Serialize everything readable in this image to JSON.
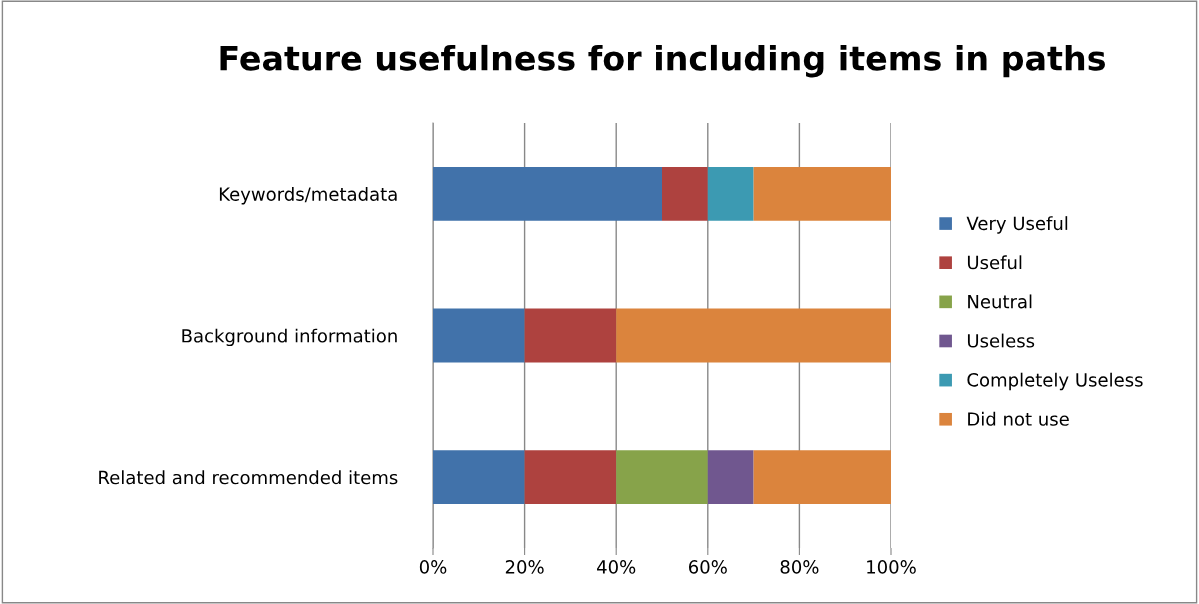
{
  "chart_data": {
    "type": "bar",
    "orientation": "horizontal",
    "stacked": true,
    "title": "Feature usefulness for including items in paths",
    "categories": [
      "Keywords/metadata",
      "Background information",
      "Related and recommended items"
    ],
    "series": [
      {
        "name": "Very Useful",
        "color": "#4172aa",
        "values": [
          50,
          20,
          20
        ]
      },
      {
        "name": "Useful",
        "color": "#ae423f",
        "values": [
          10,
          20,
          20
        ]
      },
      {
        "name": "Neutral",
        "color": "#87a34a",
        "values": [
          0,
          0,
          20
        ]
      },
      {
        "name": "Useless",
        "color": "#70578f",
        "values": [
          0,
          0,
          10
        ]
      },
      {
        "name": "Completely Useless",
        "color": "#3c9ab2",
        "values": [
          10,
          0,
          0
        ]
      },
      {
        "name": "Did not use",
        "color": "#db843d",
        "values": [
          30,
          60,
          30
        ]
      }
    ],
    "xlim": [
      0,
      100
    ],
    "xticks": [
      {
        "value": 0,
        "label": "0%"
      },
      {
        "value": 20,
        "label": "20%"
      },
      {
        "value": 40,
        "label": "40%"
      },
      {
        "value": 60,
        "label": "60%"
      },
      {
        "value": 80,
        "label": "80%"
      },
      {
        "value": 100,
        "label": "100%"
      }
    ],
    "grid": "x",
    "legend": "right"
  }
}
